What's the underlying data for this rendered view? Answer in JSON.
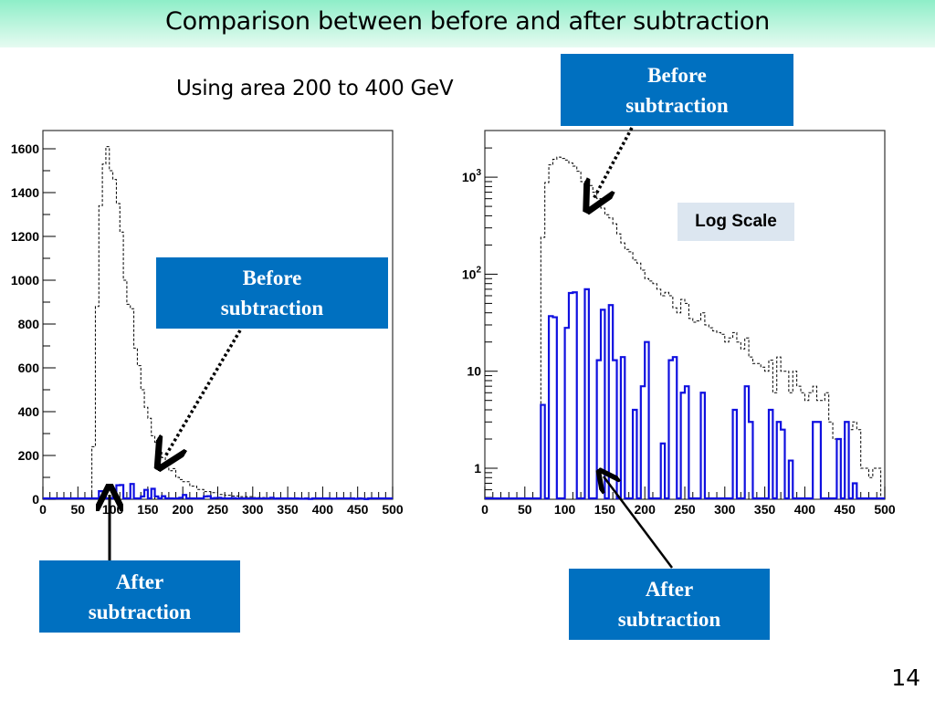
{
  "slide": {
    "title": "Comparison between before and after subtraction",
    "subtitle": "Using area 200 to 400 GeV",
    "page_number": "14",
    "log_scale_label": "Log Scale",
    "callouts": {
      "left_before": [
        "Before",
        "subtraction"
      ],
      "left_after": [
        "After",
        "subtraction"
      ],
      "right_before": [
        "Before",
        "subtraction"
      ],
      "right_after": [
        "After",
        "subtraction"
      ]
    },
    "colors": {
      "callout": "#0070c0",
      "after_line": "#1010e0",
      "before_line": "#000000",
      "title_bar": "#8eeec8"
    }
  },
  "chart_data": [
    {
      "type": "line",
      "style": "step-histogram",
      "title": "",
      "xlabel": "",
      "ylabel": "",
      "xlim": [
        0,
        500
      ],
      "ylim": [
        0,
        1680
      ],
      "yscale": "linear",
      "x_ticks": [
        "0",
        "50",
        "100",
        "150",
        "200",
        "250",
        "300",
        "350",
        "400",
        "450",
        "500"
      ],
      "y_ticks": [
        "0",
        "200",
        "400",
        "600",
        "800",
        "1000",
        "1200",
        "1400",
        "1600"
      ],
      "bin_width": 5,
      "series": [
        {
          "name": "Before subtraction",
          "line": "dashed",
          "x": [
            70,
            75,
            80,
            85,
            90,
            95,
            100,
            105,
            110,
            115,
            120,
            125,
            130,
            135,
            140,
            145,
            150,
            155,
            160,
            165,
            170,
            175,
            180,
            185,
            190,
            195,
            200,
            210,
            220,
            230,
            240,
            250,
            260,
            270,
            280,
            300,
            320,
            350,
            400,
            450
          ],
          "values": [
            240,
            880,
            1340,
            1530,
            1610,
            1500,
            1460,
            1350,
            1220,
            1000,
            890,
            870,
            690,
            610,
            500,
            420,
            370,
            290,
            260,
            220,
            190,
            150,
            130,
            140,
            100,
            90,
            80,
            60,
            45,
            35,
            30,
            22,
            18,
            15,
            12,
            8,
            6,
            4,
            2,
            1
          ]
        },
        {
          "name": "After subtraction",
          "line": "solid",
          "x": [
            80,
            85,
            90,
            95,
            100,
            105,
            110,
            115,
            120,
            125,
            130,
            135,
            140,
            145,
            150,
            155,
            160,
            165,
            170,
            175,
            180,
            185,
            190,
            195,
            200,
            205,
            230,
            235,
            240,
            245,
            250,
            255,
            270,
            275,
            310,
            315,
            325,
            330,
            335,
            340,
            355,
            360,
            365,
            370,
            375,
            380,
            410,
            415,
            440,
            445,
            450,
            455,
            460
          ],
          "values": [
            37,
            36,
            0,
            0,
            28,
            64,
            65,
            0,
            0,
            70,
            0,
            0,
            13,
            43,
            0,
            48,
            13,
            0,
            14,
            0,
            0,
            4,
            0,
            7,
            20,
            0,
            13,
            14,
            0,
            6,
            7,
            0,
            6,
            0,
            4,
            0,
            7,
            3,
            0,
            0,
            4,
            0,
            3,
            2.5,
            0,
            1.2,
            3,
            3,
            0,
            2,
            0,
            3,
            0.7
          ]
        }
      ]
    },
    {
      "type": "line",
      "style": "step-histogram",
      "title": "",
      "xlabel": "",
      "ylabel": "",
      "xlim": [
        0,
        500
      ],
      "ylim": [
        0.48,
        2600
      ],
      "yscale": "log",
      "x_ticks": [
        "0",
        "50",
        "100",
        "150",
        "200",
        "250",
        "300",
        "350",
        "400",
        "450",
        "500"
      ],
      "y_ticks": [
        "1",
        "10",
        "10^2",
        "10^3"
      ],
      "bin_width": 5,
      "series": [
        {
          "name": "Before subtraction",
          "line": "dashed",
          "x": [
            70,
            75,
            80,
            85,
            90,
            95,
            100,
            105,
            110,
            115,
            120,
            125,
            130,
            135,
            140,
            145,
            150,
            155,
            160,
            165,
            170,
            175,
            180,
            185,
            190,
            195,
            200,
            205,
            210,
            215,
            220,
            225,
            230,
            235,
            240,
            245,
            250,
            255,
            260,
            265,
            270,
            275,
            280,
            285,
            290,
            295,
            300,
            305,
            310,
            315,
            320,
            325,
            330,
            335,
            340,
            345,
            350,
            355,
            360,
            365,
            370,
            375,
            380,
            385,
            390,
            395,
            400,
            405,
            410,
            415,
            420,
            425,
            430,
            435,
            440,
            445,
            450,
            455,
            460,
            465,
            470,
            475,
            480,
            485,
            490
          ],
          "values": [
            240,
            880,
            1340,
            1530,
            1610,
            1560,
            1500,
            1400,
            1300,
            1150,
            900,
            880,
            820,
            700,
            600,
            480,
            410,
            380,
            330,
            260,
            210,
            180,
            170,
            140,
            130,
            110,
            90,
            85,
            80,
            70,
            60,
            65,
            60,
            45,
            40,
            55,
            50,
            35,
            32,
            33,
            40,
            30,
            28,
            26,
            25,
            24,
            20,
            22,
            25,
            20,
            17,
            22,
            14,
            12,
            12,
            11,
            10,
            13,
            6,
            14,
            10,
            10,
            6,
            10,
            7,
            6,
            5,
            6,
            7,
            5,
            5,
            6,
            3,
            2,
            2,
            2,
            3,
            2.5,
            3,
            2.5,
            1,
            1,
            0.8,
            1,
            1
          ]
        },
        {
          "name": "After subtraction",
          "line": "solid",
          "x": [
            70,
            75,
            80,
            85,
            90,
            95,
            100,
            105,
            110,
            115,
            120,
            125,
            130,
            135,
            140,
            145,
            150,
            155,
            160,
            165,
            170,
            175,
            180,
            185,
            190,
            195,
            200,
            205,
            210,
            215,
            220,
            225,
            230,
            235,
            240,
            245,
            250,
            255,
            260,
            265,
            270,
            275,
            280,
            300,
            305,
            310,
            315,
            320,
            325,
            330,
            335,
            340,
            345,
            350,
            355,
            360,
            365,
            370,
            375,
            380,
            385,
            390,
            400,
            405,
            410,
            415,
            420,
            425,
            430,
            440,
            445,
            450,
            455,
            460,
            465
          ],
          "values": [
            4.5,
            0,
            37,
            36,
            0,
            0,
            28,
            64,
            65,
            0,
            0,
            70,
            0,
            0,
            13,
            43,
            0,
            48,
            13,
            0,
            14,
            0,
            0,
            4,
            0,
            7,
            20,
            0,
            0,
            0,
            1.8,
            0,
            13,
            14,
            0,
            6,
            7,
            0,
            0,
            0,
            6,
            0,
            0,
            0,
            0,
            4,
            0,
            0,
            7,
            3,
            0,
            0,
            0,
            0,
            4,
            0,
            3,
            2.5,
            0,
            1.2,
            0,
            0,
            0,
            0,
            3,
            3,
            0,
            0,
            0,
            2,
            0,
            3,
            0,
            0.7,
            0
          ]
        }
      ]
    }
  ]
}
